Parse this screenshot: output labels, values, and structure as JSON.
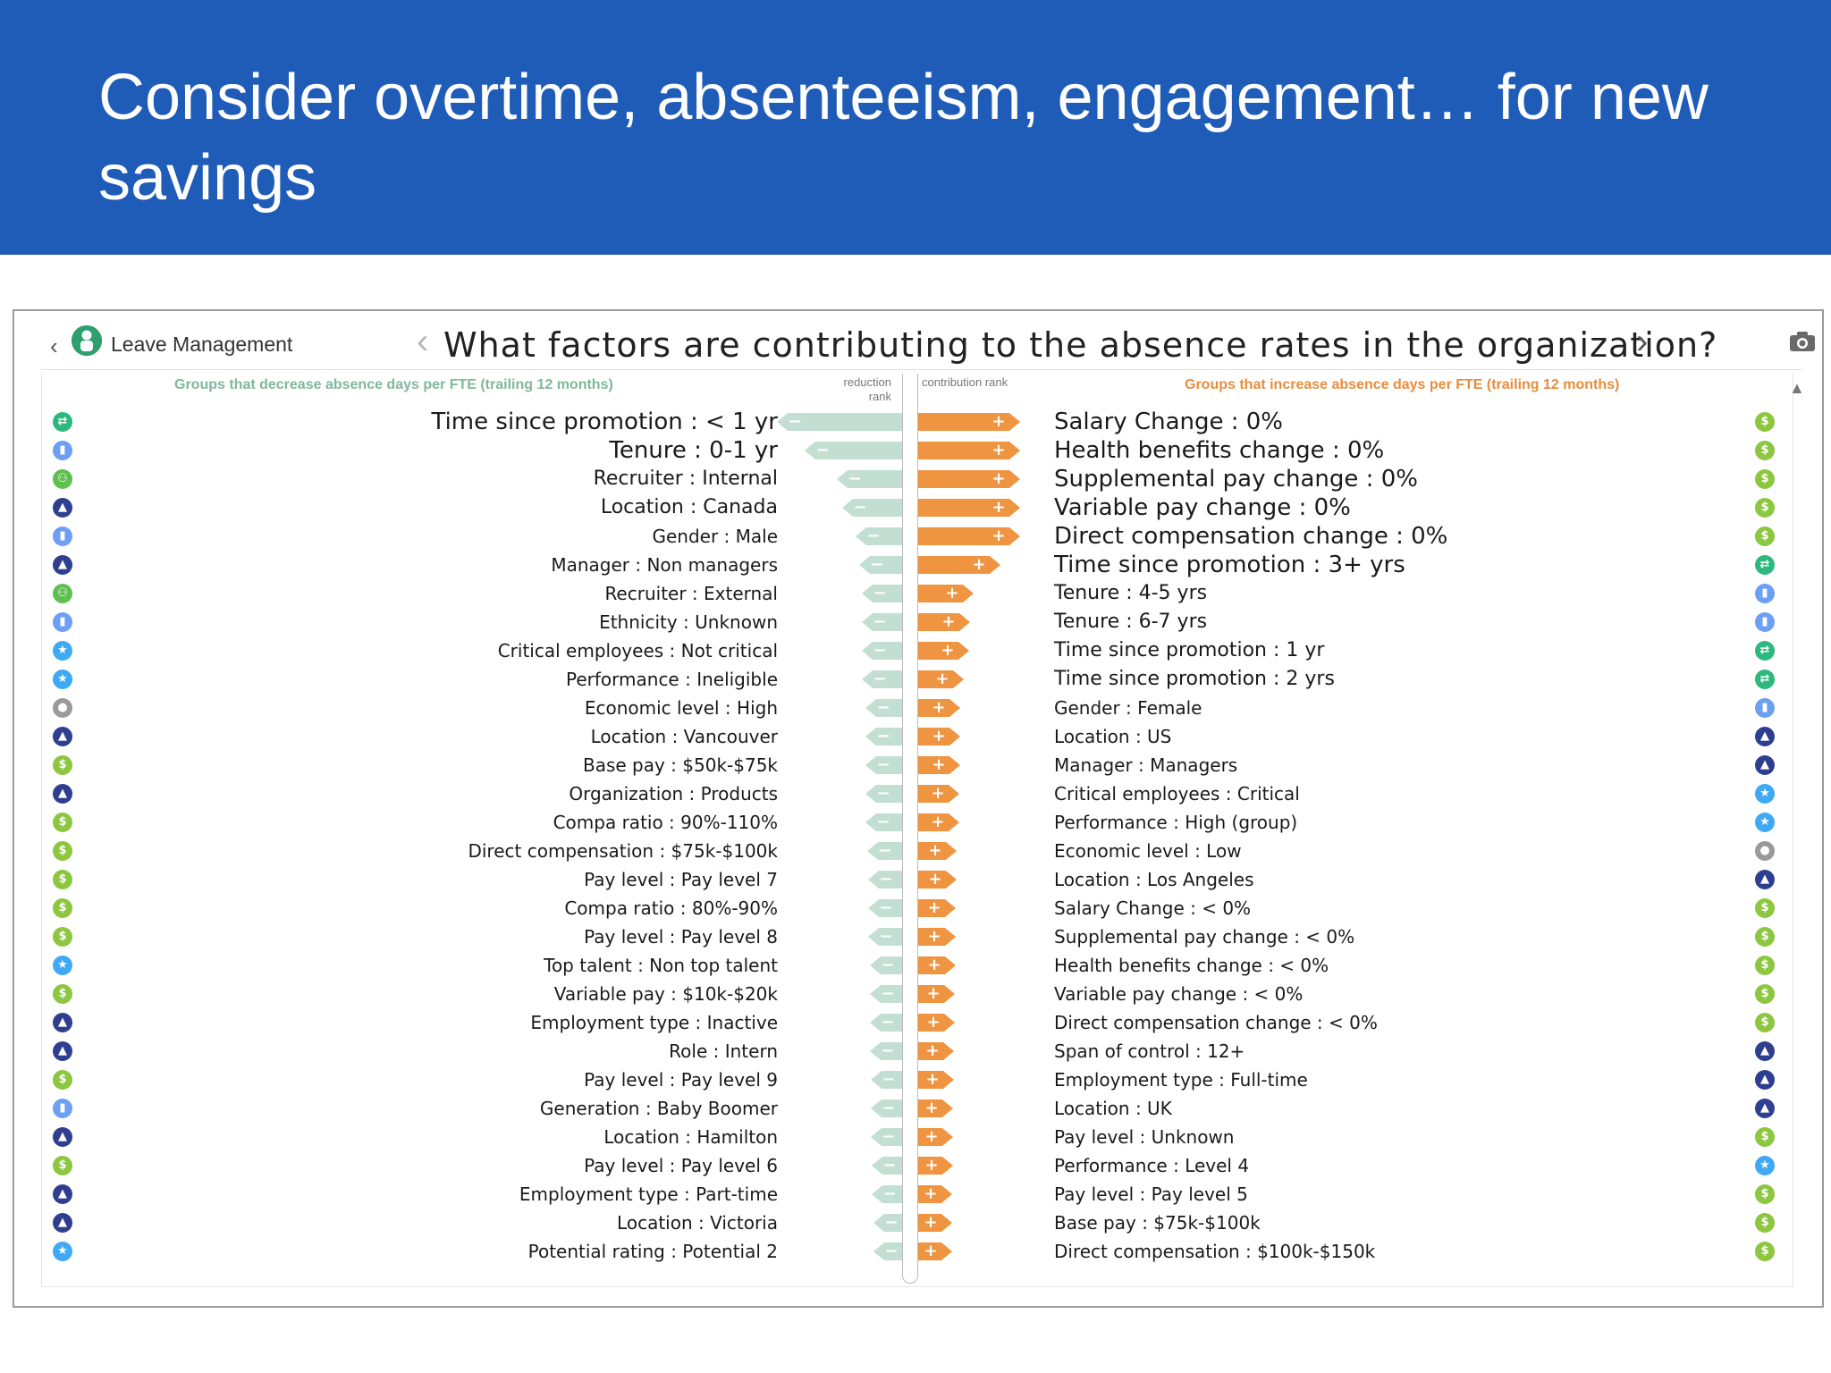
{
  "slide": {
    "title": "Consider overtime, absenteeism, engagement… for new savings"
  },
  "app": {
    "back_glyph": "‹",
    "name": "Leave Management",
    "question": "What factors are contributing to the absence rates in the organization?",
    "prev_glyph": "‹",
    "next_glyph": "›",
    "scroll_up_glyph": "▲"
  },
  "panel": {
    "left_caption": "Groups that decrease absence days per FTE (trailing 12 months)",
    "right_caption": "Groups that increase absence days per FTE (trailing 12 months)",
    "left_rank_label": "reduction rank",
    "right_rank_label": "contribution rank"
  },
  "colors": {
    "header": "#1f5cb8",
    "reduce_bar": "#c3dfd2",
    "increase_bar": "#ef9440",
    "cap_left": "#7fb89b",
    "cap_right": "#e88d3c"
  },
  "icon_types": {
    "promotion": {
      "glyph": "⇄",
      "color": "#2db87d",
      "name": "promotion-cycle-icon"
    },
    "demographic": {
      "glyph": "▮",
      "color": "#6d9ff2",
      "name": "demographic-chart-icon"
    },
    "recruiter": {
      "glyph": "⚇",
      "color": "#5fbf4f",
      "name": "recruiter-icon"
    },
    "org": {
      "glyph": "▲",
      "color": "#2f3f8f",
      "name": "org-structure-icon"
    },
    "talent": {
      "glyph": "★",
      "color": "#3fa9f5",
      "name": "talent-star-icon"
    },
    "economic": {
      "glyph": "●",
      "color": "#9a9a9a",
      "name": "economic-level-icon"
    },
    "pay": {
      "glyph": "$",
      "color": "#8dc63f",
      "name": "dollar-icon"
    }
  },
  "chart_data": {
    "type": "bar",
    "left_series": {
      "direction": "decrease",
      "items": [
        {
          "label": "Time since promotion : < 1 yr",
          "value": 1.0,
          "icon": "promotion",
          "size": "large"
        },
        {
          "label": "Tenure : 0-1 yr",
          "value": 0.78,
          "icon": "demographic",
          "size": "large"
        },
        {
          "label": "Recruiter : Internal",
          "value": 0.52,
          "icon": "recruiter",
          "size": "mid"
        },
        {
          "label": "Location : Canada",
          "value": 0.48,
          "icon": "org",
          "size": "mid"
        },
        {
          "label": "Gender : Male",
          "value": 0.37,
          "icon": "demographic",
          "size": "small"
        },
        {
          "label": "Manager : Non managers",
          "value": 0.34,
          "icon": "org",
          "size": "small"
        },
        {
          "label": "Recruiter : External",
          "value": 0.32,
          "icon": "recruiter",
          "size": "small"
        },
        {
          "label": "Ethnicity : Unknown",
          "value": 0.32,
          "icon": "demographic",
          "size": "small"
        },
        {
          "label": "Critical employees : Not critical",
          "value": 0.32,
          "icon": "talent",
          "size": "small"
        },
        {
          "label": "Performance : Ineligible",
          "value": 0.32,
          "icon": "talent",
          "size": "small"
        },
        {
          "label": "Economic level : High",
          "value": 0.29,
          "icon": "economic",
          "size": "small"
        },
        {
          "label": "Location : Vancouver",
          "value": 0.29,
          "icon": "org",
          "size": "small"
        },
        {
          "label": "Base pay : $50k-$75k",
          "value": 0.29,
          "icon": "pay",
          "size": "small"
        },
        {
          "label": "Organization : Products",
          "value": 0.29,
          "icon": "org",
          "size": "small"
        },
        {
          "label": "Compa ratio : 90%-110%",
          "value": 0.29,
          "icon": "pay",
          "size": "small"
        },
        {
          "label": "Direct compensation : $75k-$100k",
          "value": 0.28,
          "icon": "pay",
          "size": "small"
        },
        {
          "label": "Pay level : Pay level 7",
          "value": 0.27,
          "icon": "pay",
          "size": "small"
        },
        {
          "label": "Compa ratio : 80%-90%",
          "value": 0.27,
          "icon": "pay",
          "size": "small"
        },
        {
          "label": "Pay level : Pay level 8",
          "value": 0.27,
          "icon": "pay",
          "size": "small"
        },
        {
          "label": "Top talent : Non top talent",
          "value": 0.26,
          "icon": "talent",
          "size": "small"
        },
        {
          "label": "Variable pay : $10k-$20k",
          "value": 0.26,
          "icon": "pay",
          "size": "small"
        },
        {
          "label": "Employment type : Inactive",
          "value": 0.26,
          "icon": "org",
          "size": "small"
        },
        {
          "label": "Role : Intern",
          "value": 0.26,
          "icon": "org",
          "size": "small"
        },
        {
          "label": "Pay level : Pay level 9",
          "value": 0.25,
          "icon": "pay",
          "size": "small"
        },
        {
          "label": "Generation : Baby Boomer",
          "value": 0.25,
          "icon": "demographic",
          "size": "small"
        },
        {
          "label": "Location : Hamilton",
          "value": 0.25,
          "icon": "org",
          "size": "small"
        },
        {
          "label": "Pay level : Pay level 6",
          "value": 0.24,
          "icon": "pay",
          "size": "small"
        },
        {
          "label": "Employment type : Part-time",
          "value": 0.24,
          "icon": "org",
          "size": "small"
        },
        {
          "label": "Location : Victoria",
          "value": 0.23,
          "icon": "org",
          "size": "small"
        },
        {
          "label": "Potential rating : Potential 2",
          "value": 0.23,
          "icon": "talent",
          "size": "small"
        }
      ]
    },
    "right_series": {
      "direction": "increase",
      "items": [
        {
          "label": "Salary Change : 0%",
          "value": 1.0,
          "icon": "pay",
          "size": "large"
        },
        {
          "label": "Health benefits change : 0%",
          "value": 1.0,
          "icon": "pay",
          "size": "large"
        },
        {
          "label": "Supplemental pay change : 0%",
          "value": 1.0,
          "icon": "pay",
          "size": "large"
        },
        {
          "label": "Variable pay change : 0%",
          "value": 1.0,
          "icon": "pay",
          "size": "large"
        },
        {
          "label": "Direct compensation change : 0%",
          "value": 1.0,
          "icon": "pay",
          "size": "large"
        },
        {
          "label": "Time since promotion : 3+ yrs",
          "value": 0.81,
          "icon": "promotion",
          "size": "large"
        },
        {
          "label": "Tenure : 4-5 yrs",
          "value": 0.54,
          "icon": "demographic",
          "size": "mid"
        },
        {
          "label": "Tenure : 6-7 yrs",
          "value": 0.51,
          "icon": "demographic",
          "size": "mid"
        },
        {
          "label": "Time since promotion : 1 yr",
          "value": 0.5,
          "icon": "promotion",
          "size": "mid"
        },
        {
          "label": "Time since promotion : 2 yrs",
          "value": 0.45,
          "icon": "promotion",
          "size": "mid"
        },
        {
          "label": "Gender : Female",
          "value": 0.41,
          "icon": "demographic",
          "size": "small"
        },
        {
          "label": "Location : US",
          "value": 0.41,
          "icon": "org",
          "size": "small"
        },
        {
          "label": "Manager : Managers",
          "value": 0.41,
          "icon": "org",
          "size": "small"
        },
        {
          "label": "Critical employees : Critical",
          "value": 0.4,
          "icon": "talent",
          "size": "small"
        },
        {
          "label": "Performance : High (group)",
          "value": 0.4,
          "icon": "talent",
          "size": "small"
        },
        {
          "label": "Economic level : Low",
          "value": 0.38,
          "icon": "economic",
          "size": "small"
        },
        {
          "label": "Location : Los Angeles",
          "value": 0.38,
          "icon": "org",
          "size": "small"
        },
        {
          "label": "Salary Change : < 0%",
          "value": 0.37,
          "icon": "pay",
          "size": "small"
        },
        {
          "label": "Supplemental pay change : < 0%",
          "value": 0.37,
          "icon": "pay",
          "size": "small"
        },
        {
          "label": "Health benefits change : < 0%",
          "value": 0.37,
          "icon": "pay",
          "size": "small"
        },
        {
          "label": "Variable pay change : < 0%",
          "value": 0.36,
          "icon": "pay",
          "size": "small"
        },
        {
          "label": "Direct compensation change : < 0%",
          "value": 0.36,
          "icon": "pay",
          "size": "small"
        },
        {
          "label": "Span of control : 12+",
          "value": 0.35,
          "icon": "org",
          "size": "small"
        },
        {
          "label": "Employment type : Full-time",
          "value": 0.35,
          "icon": "org",
          "size": "small"
        },
        {
          "label": "Location : UK",
          "value": 0.34,
          "icon": "org",
          "size": "small"
        },
        {
          "label": "Pay level : Unknown",
          "value": 0.34,
          "icon": "pay",
          "size": "small"
        },
        {
          "label": "Performance : Level 4",
          "value": 0.34,
          "icon": "talent",
          "size": "small"
        },
        {
          "label": "Pay level : Pay level 5",
          "value": 0.33,
          "icon": "pay",
          "size": "small"
        },
        {
          "label": "Base pay : $75k-$100k",
          "value": 0.33,
          "icon": "pay",
          "size": "small"
        },
        {
          "label": "Direct compensation : $100k-$150k",
          "value": 0.33,
          "icon": "pay",
          "size": "small"
        }
      ]
    }
  }
}
